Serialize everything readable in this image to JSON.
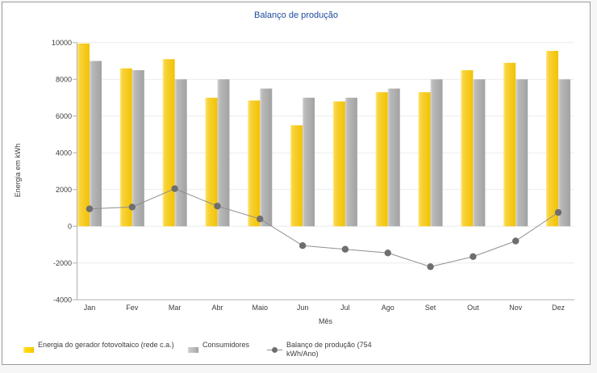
{
  "title": {
    "text": "Balanço de produção",
    "color": "#1c4a9c"
  },
  "axes": {
    "y_label": "Energia em kWh",
    "x_label": "Mês"
  },
  "chart_data": {
    "type": "bar",
    "title": "Balanço de produção",
    "xlabel": "Mês",
    "ylabel": "Energia em kWh",
    "ylim": [
      -4000,
      10000
    ],
    "yticks": [
      10000,
      8000,
      6000,
      4000,
      2000,
      0,
      -2000,
      -4000
    ],
    "grid": true,
    "legend_position": "bottom-left",
    "categories": [
      "Jan",
      "Fev",
      "Mar",
      "Abr",
      "Maio",
      "Jun",
      "Jul",
      "Ago",
      "Set",
      "Out",
      "Nov",
      "Dez"
    ],
    "series": [
      {
        "name": "Energia do gerador fotovoltaico (rede c.a.)",
        "type": "bar",
        "color_from": "#ffe880",
        "color_to": "#f2c202",
        "values": [
          9950,
          8600,
          9100,
          7000,
          6850,
          5500,
          6800,
          7300,
          7300,
          8500,
          8900,
          9550
        ]
      },
      {
        "name": "Consumidores",
        "type": "bar",
        "color_from": "#d6d6d6",
        "color_to": "#a2a2a2",
        "values": [
          9000,
          8500,
          8000,
          8000,
          7500,
          7000,
          7000,
          7500,
          8000,
          8000,
          8000,
          8000
        ]
      },
      {
        "name": "Balanço de produção (754 kWh/Ano)",
        "type": "line",
        "color": "#8f8f8f",
        "dot_color": "#6e6e6e",
        "values": [
          950,
          1050,
          2050,
          1100,
          400,
          -1050,
          -1250,
          -1450,
          -2200,
          -1650,
          -800,
          754
        ]
      }
    ],
    "annual_balance_kwh": 754
  },
  "legend": {
    "items": [
      {
        "label": "Energia do gerador fotovoltaico (rede c.a.)",
        "swatch": "yellow-gradient-bar"
      },
      {
        "label": "Consumidores",
        "swatch": "gray-gradient-bar"
      },
      {
        "label": "Balanço de produção (754 kWh/Ano)",
        "swatch": "line-dot"
      }
    ]
  },
  "colors": {
    "title": "#1c4a9c",
    "text": "#3d3d3d",
    "gridline": "#ebebeb",
    "axis_line": "#b0b0b0",
    "frame_border": "#9c9c9c",
    "balance_line": "#8f8f8f",
    "balance_dot": "#6e6e6e"
  }
}
